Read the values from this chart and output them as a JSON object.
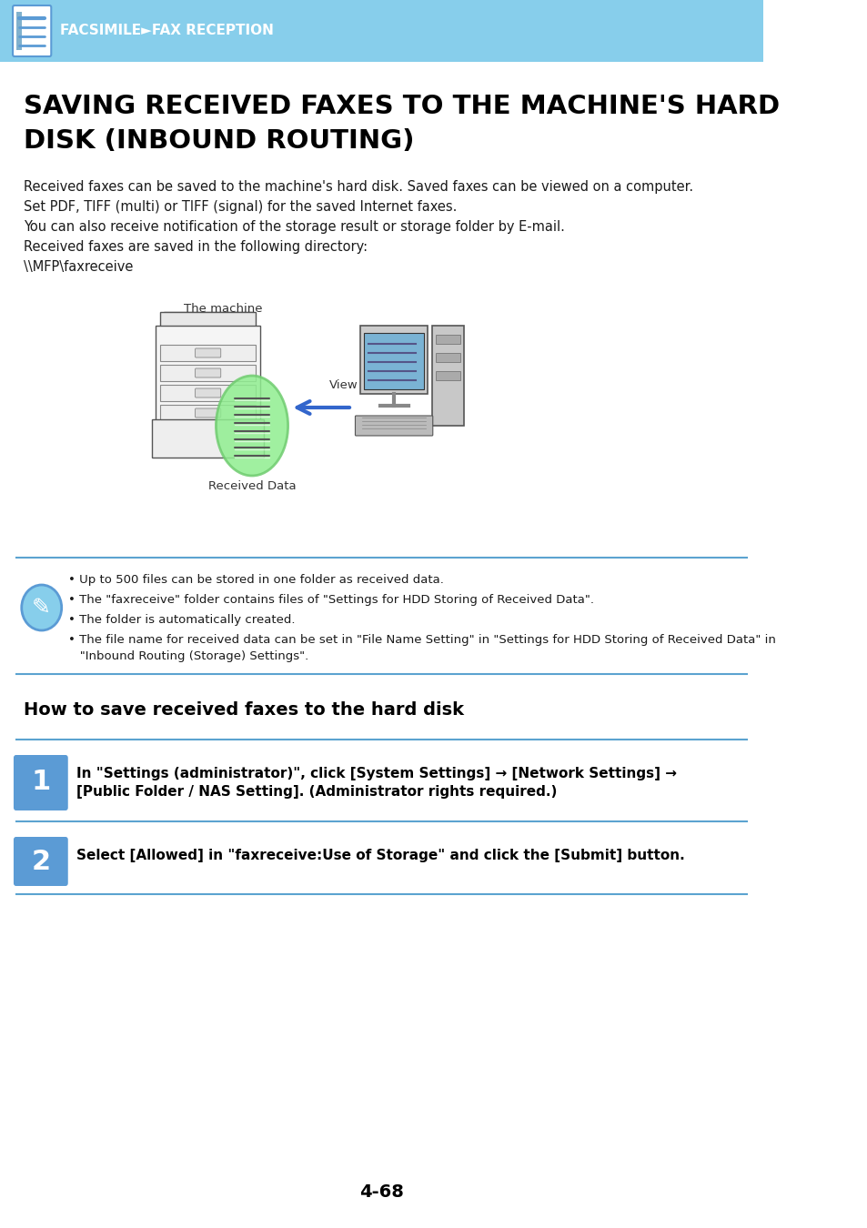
{
  "header_bg_color": "#87CEEB",
  "header_text": "FACSIMILE►FAX RECEPTION",
  "header_text_color": "#FFFFFF",
  "page_bg_color": "#FFFFFF",
  "title_line1": "SAVING RECEIVED FAXES TO THE MACHINE'S HARD",
  "title_line2": "DISK (INBOUND ROUTING)",
  "title_color": "#000000",
  "body_lines": [
    "Received faxes can be saved to the machine's hard disk. Saved faxes can be viewed on a computer.",
    "Set PDF, TIFF (multi) or TIFF (signal) for the saved Internet faxes.",
    "You can also receive notification of the storage result or storage folder by E-mail.",
    "Received faxes are saved in the following directory:",
    "\\\\MFP\\faxreceive"
  ],
  "note_bullets": [
    "• Up to 500 files can be stored in one folder as received data.",
    "• The \"faxreceive\" folder contains files of \"Settings for HDD Storing of Received Data\".",
    "• The folder is automatically created.",
    "• The file name for received data can be set in \"File Name Setting\" in \"Settings for HDD Storing of Received Data\" in\n   \"Inbound Routing (Storage) Settings\"."
  ],
  "section_title": "How to save received faxes to the hard disk",
  "step1_num": "1",
  "step1_text": "In \"Settings (administrator)\", click [System Settings] → [Network Settings] →\n[Public Folder / NAS Setting]. (Administrator rights required.)",
  "step2_num": "2",
  "step2_text": "Select [Allowed] in \"faxreceive:Use of Storage\" and click the [Submit] button.",
  "page_number": "4-68",
  "label_machine": "The machine",
  "label_view": "View",
  "label_received": "Received Data",
  "step_bg_color": "#5B9BD5",
  "step_text_color": "#FFFFFF",
  "note_icon_color": "#5B9BD5",
  "separator_color": "#5BA3D0",
  "section_title_color": "#000000",
  "body_text_color": "#1a1a1a"
}
